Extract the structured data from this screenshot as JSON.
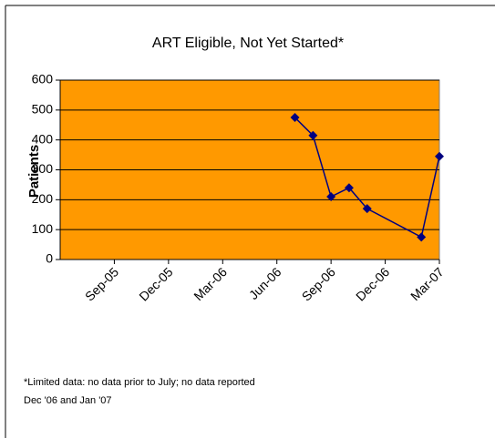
{
  "chart_data": {
    "type": "line",
    "title": "ART Eligible, Not Yet Started*",
    "ylabel": "Patients",
    "x": [
      "Jul-06",
      "Aug-06",
      "Sep-06",
      "Oct-06",
      "Nov-06",
      "Feb-07",
      "Mar-07"
    ],
    "values": [
      475,
      415,
      210,
      240,
      170,
      75,
      345
    ],
    "color": "#000080",
    "xlim": [
      "Jun-05",
      "Mar-07"
    ],
    "xticks": [
      "Sep-05",
      "Dec-05",
      "Mar-06",
      "Jun-06",
      "Sep-06",
      "Dec-06",
      "Mar-07"
    ],
    "ylim": [
      0,
      600
    ],
    "yticks": [
      0,
      100,
      200,
      300,
      400,
      500,
      600
    ],
    "grid": true,
    "plot_background": "#ff9900",
    "footnote": [
      "*Limited data: no data prior to July; no data reported",
      "Dec '06 and Jan '07"
    ]
  }
}
